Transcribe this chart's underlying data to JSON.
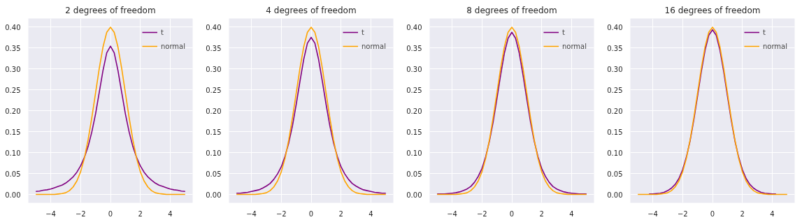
{
  "chart_data": [
    {
      "type": "line",
      "title": "2 degrees of freedom",
      "x": [
        -5,
        -4.75,
        -4.5,
        -4.25,
        -4,
        -3.75,
        -3.5,
        -3.25,
        -3,
        -2.75,
        -2.5,
        -2.25,
        -2,
        -1.75,
        -1.5,
        -1.25,
        -1,
        -0.75,
        -0.5,
        -0.25,
        0,
        0.25,
        0.5,
        0.75,
        1,
        1.25,
        1.5,
        1.75,
        2,
        2.25,
        2.5,
        2.75,
        3,
        3.25,
        3.5,
        3.75,
        4,
        4.25,
        4.5,
        4.75,
        5
      ],
      "series": [
        {
          "name": "t",
          "color": "#800080",
          "values": [
            0.007,
            0.008,
            0.01,
            0.011,
            0.013,
            0.016,
            0.019,
            0.022,
            0.027,
            0.034,
            0.042,
            0.053,
            0.068,
            0.088,
            0.114,
            0.149,
            0.192,
            0.244,
            0.296,
            0.338,
            0.354,
            0.338,
            0.296,
            0.244,
            0.192,
            0.149,
            0.114,
            0.088,
            0.068,
            0.053,
            0.042,
            0.034,
            0.027,
            0.022,
            0.019,
            0.016,
            0.013,
            0.011,
            0.01,
            0.008,
            0.007
          ]
        },
        {
          "name": "normal",
          "color": "#ffa500",
          "values": [
            0,
            0,
            0,
            0,
            0,
            0,
            0.001,
            0.002,
            0.004,
            0.009,
            0.018,
            0.032,
            0.054,
            0.086,
            0.13,
            0.183,
            0.242,
            0.301,
            0.352,
            0.387,
            0.399,
            0.387,
            0.352,
            0.301,
            0.242,
            0.183,
            0.13,
            0.086,
            0.054,
            0.032,
            0.018,
            0.009,
            0.004,
            0.002,
            0.001,
            0,
            0,
            0,
            0,
            0,
            0
          ]
        }
      ],
      "xlim": [
        -5.5,
        5.5
      ],
      "ylim": [
        -0.02,
        0.42
      ],
      "xticks": [
        -4,
        -2,
        0,
        2,
        4
      ],
      "yticks": [
        {
          "value": 0,
          "label": "0.00"
        },
        0.05,
        {
          "value": 0.1,
          "label": "0.10"
        },
        0.15,
        {
          "value": 0.2,
          "label": "0.20"
        },
        0.25,
        {
          "value": 0.3,
          "label": "0.30"
        },
        0.35,
        {
          "value": 0.4,
          "label": "0.40"
        }
      ],
      "grid": true,
      "legend": "top right"
    },
    {
      "type": "line",
      "title": "4 degrees of freedom",
      "x": [
        -5,
        -4.75,
        -4.5,
        -4.25,
        -4,
        -3.75,
        -3.5,
        -3.25,
        -3,
        -2.75,
        -2.5,
        -2.25,
        -2,
        -1.75,
        -1.5,
        -1.25,
        -1,
        -0.75,
        -0.5,
        -0.25,
        0,
        0.25,
        0.5,
        0.75,
        1,
        1.25,
        1.5,
        1.75,
        2,
        2.25,
        2.5,
        2.75,
        3,
        3.25,
        3.5,
        3.75,
        4,
        4.25,
        4.5,
        4.75,
        5
      ],
      "series": [
        {
          "name": "t",
          "color": "#800080",
          "values": [
            0.003,
            0.003,
            0.004,
            0.005,
            0.007,
            0.009,
            0.011,
            0.015,
            0.02,
            0.026,
            0.036,
            0.049,
            0.066,
            0.091,
            0.123,
            0.164,
            0.215,
            0.27,
            0.322,
            0.361,
            0.375,
            0.361,
            0.322,
            0.27,
            0.215,
            0.164,
            0.123,
            0.091,
            0.066,
            0.049,
            0.036,
            0.026,
            0.02,
            0.015,
            0.011,
            0.009,
            0.007,
            0.005,
            0.004,
            0.003,
            0.003
          ]
        },
        {
          "name": "normal",
          "color": "#ffa500",
          "values": [
            0,
            0,
            0,
            0,
            0,
            0,
            0.001,
            0.002,
            0.004,
            0.009,
            0.018,
            0.032,
            0.054,
            0.086,
            0.13,
            0.183,
            0.242,
            0.301,
            0.352,
            0.387,
            0.399,
            0.387,
            0.352,
            0.301,
            0.242,
            0.183,
            0.13,
            0.086,
            0.054,
            0.032,
            0.018,
            0.009,
            0.004,
            0.002,
            0.001,
            0,
            0,
            0,
            0,
            0,
            0
          ]
        }
      ],
      "xlim": [
        -5.5,
        5.5
      ],
      "ylim": [
        -0.02,
        0.42
      ],
      "xticks": [
        -4,
        -2,
        0,
        2,
        4
      ],
      "yticks": [
        {
          "value": 0,
          "label": "0.00"
        },
        0.05,
        {
          "value": 0.1,
          "label": "0.10"
        },
        0.15,
        {
          "value": 0.2,
          "label": "0.20"
        },
        0.25,
        {
          "value": 0.3,
          "label": "0.30"
        },
        0.35,
        {
          "value": 0.4,
          "label": "0.40"
        }
      ],
      "grid": true,
      "legend": "top right"
    },
    {
      "type": "line",
      "title": "8 degrees of freedom",
      "x": [
        -5,
        -4.75,
        -4.5,
        -4.25,
        -4,
        -3.75,
        -3.5,
        -3.25,
        -3,
        -2.75,
        -2.5,
        -2.25,
        -2,
        -1.75,
        -1.5,
        -1.25,
        -1,
        -0.75,
        -0.5,
        -0.25,
        0,
        0.25,
        0.5,
        0.75,
        1,
        1.25,
        1.5,
        1.75,
        2,
        2.25,
        2.5,
        2.75,
        3,
        3.25,
        3.5,
        3.75,
        4,
        4.25,
        4.5,
        4.75,
        5
      ],
      "series": [
        {
          "name": "t",
          "color": "#800080",
          "values": [
            0.001,
            0.001,
            0.001,
            0.002,
            0.003,
            0.004,
            0.006,
            0.009,
            0.013,
            0.019,
            0.029,
            0.043,
            0.062,
            0.09,
            0.127,
            0.173,
            0.228,
            0.285,
            0.337,
            0.373,
            0.387,
            0.373,
            0.337,
            0.285,
            0.228,
            0.173,
            0.127,
            0.09,
            0.062,
            0.043,
            0.029,
            0.019,
            0.013,
            0.009,
            0.006,
            0.004,
            0.003,
            0.002,
            0.001,
            0.001,
            0.001
          ]
        },
        {
          "name": "normal",
          "color": "#ffa500",
          "values": [
            0,
            0,
            0,
            0,
            0,
            0,
            0.001,
            0.002,
            0.004,
            0.009,
            0.018,
            0.032,
            0.054,
            0.086,
            0.13,
            0.183,
            0.242,
            0.301,
            0.352,
            0.387,
            0.399,
            0.387,
            0.352,
            0.301,
            0.242,
            0.183,
            0.13,
            0.086,
            0.054,
            0.032,
            0.018,
            0.009,
            0.004,
            0.002,
            0.001,
            0,
            0,
            0,
            0,
            0,
            0
          ]
        }
      ],
      "xlim": [
        -5.5,
        5.5
      ],
      "ylim": [
        -0.02,
        0.42
      ],
      "xticks": [
        -4,
        -2,
        0,
        2,
        4
      ],
      "yticks": [
        {
          "value": 0,
          "label": "0.00"
        },
        0.05,
        {
          "value": 0.1,
          "label": "0.10"
        },
        0.15,
        {
          "value": 0.2,
          "label": "0.20"
        },
        0.25,
        {
          "value": 0.3,
          "label": "0.30"
        },
        0.35,
        {
          "value": 0.4,
          "label": "0.40"
        }
      ],
      "grid": true,
      "legend": "top right"
    },
    {
      "type": "line",
      "title": "16 degrees of freedom",
      "x": [
        -5,
        -4.75,
        -4.5,
        -4.25,
        -4,
        -3.75,
        -3.5,
        -3.25,
        -3,
        -2.75,
        -2.5,
        -2.25,
        -2,
        -1.75,
        -1.5,
        -1.25,
        -1,
        -0.75,
        -0.5,
        -0.25,
        0,
        0.25,
        0.5,
        0.75,
        1,
        1.25,
        1.5,
        1.75,
        2,
        2.25,
        2.5,
        2.75,
        3,
        3.25,
        3.5,
        3.75,
        4,
        4.25,
        4.5,
        4.75,
        5
      ],
      "series": [
        {
          "name": "t",
          "color": "#800080",
          "values": [
            null,
            null,
            null,
            0.001,
            0.001,
            0.002,
            0.003,
            0.005,
            0.009,
            0.015,
            0.024,
            0.038,
            0.059,
            0.089,
            0.128,
            0.178,
            0.235,
            0.293,
            0.344,
            0.38,
            0.393,
            0.38,
            0.344,
            0.293,
            0.235,
            0.178,
            0.128,
            0.089,
            0.059,
            0.038,
            0.024,
            0.015,
            0.009,
            0.005,
            0.003,
            0.002,
            0.001,
            0.001,
            null,
            null,
            null
          ]
        },
        {
          "name": "normal",
          "color": "#ffa500",
          "values": [
            0,
            0,
            0,
            0,
            0,
            0,
            0.001,
            0.002,
            0.004,
            0.009,
            0.018,
            0.032,
            0.054,
            0.086,
            0.13,
            0.183,
            0.242,
            0.301,
            0.352,
            0.387,
            0.399,
            0.387,
            0.352,
            0.301,
            0.242,
            0.183,
            0.13,
            0.086,
            0.054,
            0.032,
            0.018,
            0.009,
            0.004,
            0.002,
            0.001,
            0,
            0,
            0,
            0,
            0,
            0
          ]
        }
      ],
      "xlim": [
        -5.5,
        5.5
      ],
      "ylim": [
        -0.02,
        0.42
      ],
      "xticks": [
        -4,
        -2,
        0,
        2,
        4
      ],
      "yticks": [
        {
          "value": 0,
          "label": "0.00"
        },
        0.05,
        {
          "value": 0.1,
          "label": "0.10"
        },
        0.15,
        {
          "value": 0.2,
          "label": "0.20"
        },
        0.25,
        {
          "value": 0.3,
          "label": "0.30"
        },
        0.35,
        {
          "value": 0.4,
          "label": "0.40"
        }
      ],
      "grid": true,
      "legend": "top right"
    }
  ]
}
